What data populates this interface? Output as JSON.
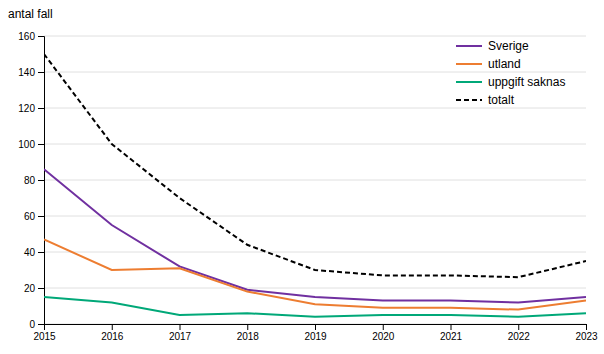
{
  "chart_data": {
    "type": "line",
    "y_label": "antal fall",
    "x": [
      2015,
      2016,
      2017,
      2018,
      2019,
      2020,
      2021,
      2022,
      2023
    ],
    "xlim": [
      2015,
      2023
    ],
    "xticks": [
      2015,
      2016,
      2017,
      2018,
      2019,
      2020,
      2021,
      2022,
      2023
    ],
    "ylim": [
      0,
      160
    ],
    "yticks": [
      0,
      20,
      40,
      60,
      80,
      100,
      120,
      140,
      160
    ],
    "grid": true,
    "legend": "upper right",
    "series": [
      {
        "name": "Sverige",
        "color": "#7030a0",
        "line_style": "solid",
        "values": [
          86,
          55,
          32,
          19,
          15,
          13,
          13,
          12,
          15
        ]
      },
      {
        "name": "utland",
        "color": "#ed7d31",
        "line_style": "solid",
        "values": [
          47,
          30,
          31,
          18,
          11,
          9,
          9,
          8,
          13
        ]
      },
      {
        "name": "uppgift saknas",
        "color": "#00a878",
        "line_style": "solid",
        "values": [
          15,
          12,
          5,
          6,
          4,
          5,
          5,
          4,
          6
        ]
      },
      {
        "name": "totalt",
        "color": "#000000",
        "line_style": "dashed",
        "values": [
          150,
          100,
          70,
          44,
          30,
          27,
          27,
          26,
          35
        ]
      }
    ]
  }
}
